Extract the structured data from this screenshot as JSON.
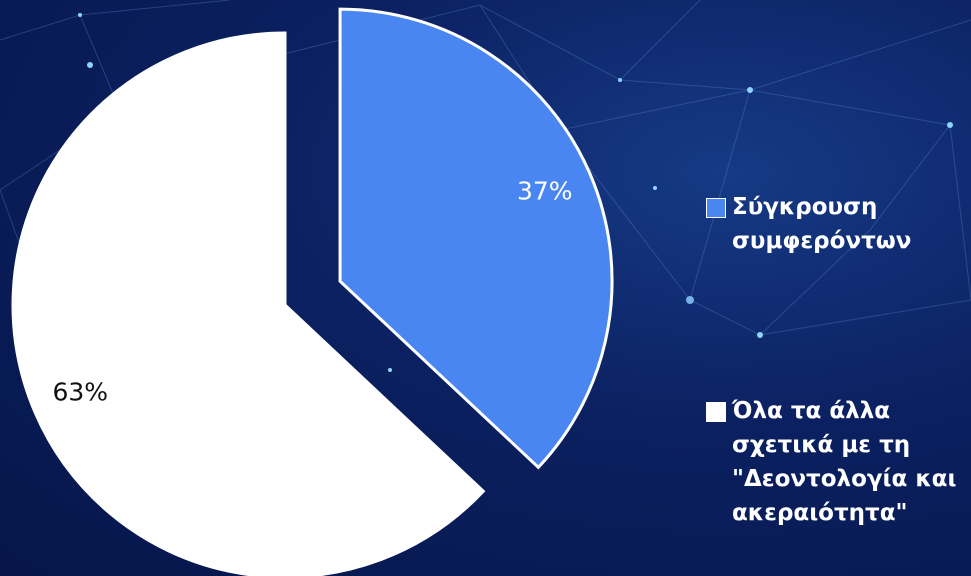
{
  "chart_data": {
    "type": "pie",
    "categories": [
      "Σύγκρουση συμφερόντων",
      "Όλα τα άλλα σχετικά με τη \"Δεοντολογία και ακεραιότητα\""
    ],
    "values": [
      37,
      63
    ],
    "value_labels": [
      "37%",
      "63%"
    ],
    "colors": [
      "#4a86f2",
      "#ffffff"
    ],
    "legend": "right"
  }
}
